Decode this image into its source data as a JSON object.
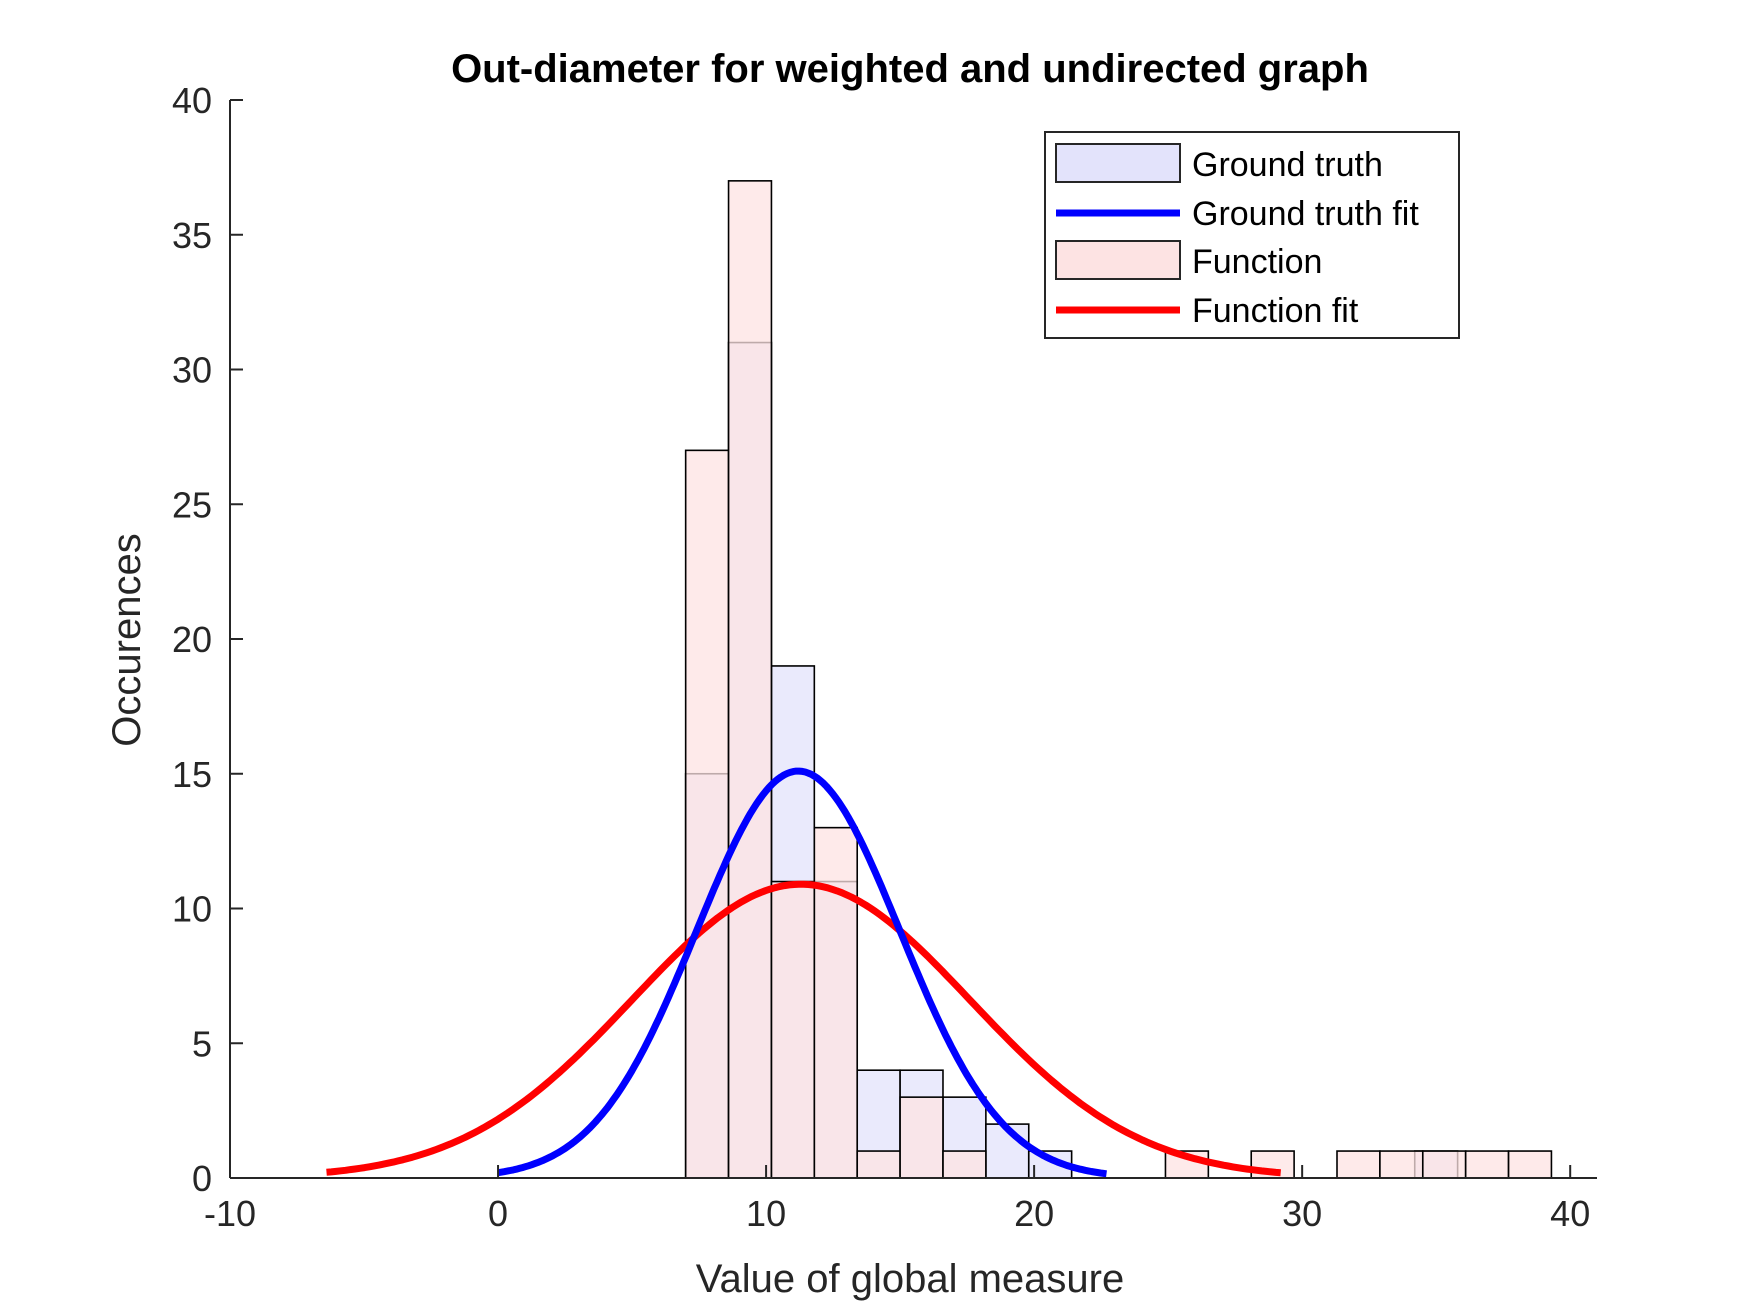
{
  "chart_data": {
    "type": "bar",
    "title": "Out-diameter for weighted and undirected graph",
    "xlabel": "Value of global measure",
    "ylabel": "Occurences",
    "xlim": [
      -10,
      41
    ],
    "ylim": [
      0,
      40
    ],
    "xticks": [
      -10,
      0,
      10,
      20,
      30,
      40
    ],
    "yticks": [
      0,
      5,
      10,
      15,
      20,
      25,
      30,
      35,
      40
    ],
    "grid": false,
    "legend_position": "top-right",
    "series": [
      {
        "name": "Ground truth",
        "kind": "histogram",
        "color": "#e3e3fb",
        "edge_color": "#000000",
        "bins": [
          {
            "x0": 7.0,
            "x1": 8.6,
            "count": 15
          },
          {
            "x0": 8.6,
            "x1": 10.2,
            "count": 31
          },
          {
            "x0": 10.2,
            "x1": 11.8,
            "count": 19
          },
          {
            "x0": 11.8,
            "x1": 13.4,
            "count": 11
          },
          {
            "x0": 13.4,
            "x1": 15.0,
            "count": 4
          },
          {
            "x0": 15.0,
            "x1": 16.6,
            "count": 4
          },
          {
            "x0": 16.6,
            "x1": 18.2,
            "count": 3
          },
          {
            "x0": 18.2,
            "x1": 19.8,
            "count": 2
          },
          {
            "x0": 19.8,
            "x1": 21.4,
            "count": 1
          },
          {
            "x0": 34.2,
            "x1": 35.8,
            "count": 1
          }
        ]
      },
      {
        "name": "Ground truth fit",
        "kind": "normal_fit",
        "color": "#0000ff",
        "mean": 11.2,
        "peak": 15.1,
        "sd": 3.8,
        "x_range": [
          0,
          22.7
        ]
      },
      {
        "name": "Function",
        "kind": "histogram",
        "color": "#fde3e3",
        "edge_color": "#000000",
        "bins": [
          {
            "x0": 7.0,
            "x1": 8.6,
            "count": 27
          },
          {
            "x0": 8.6,
            "x1": 10.2,
            "count": 37
          },
          {
            "x0": 10.2,
            "x1": 11.8,
            "count": 11
          },
          {
            "x0": 11.8,
            "x1": 13.4,
            "count": 13
          },
          {
            "x0": 13.4,
            "x1": 15.0,
            "count": 1
          },
          {
            "x0": 15.0,
            "x1": 16.6,
            "count": 3
          },
          {
            "x0": 16.6,
            "x1": 18.2,
            "count": 1
          },
          {
            "x0": 24.9,
            "x1": 26.5,
            "count": 1
          },
          {
            "x0": 28.1,
            "x1": 29.7,
            "count": 1
          },
          {
            "x0": 31.3,
            "x1": 32.9,
            "count": 1
          },
          {
            "x0": 32.9,
            "x1": 34.5,
            "count": 1
          },
          {
            "x0": 34.5,
            "x1": 36.1,
            "count": 1
          },
          {
            "x0": 36.1,
            "x1": 37.7,
            "count": 1
          },
          {
            "x0": 37.7,
            "x1": 39.3,
            "count": 1
          }
        ]
      },
      {
        "name": "Function fit",
        "kind": "normal_fit",
        "color": "#ff0000",
        "mean": 11.3,
        "peak": 10.9,
        "sd": 6.3,
        "x_range": [
          -6.4,
          29.2
        ]
      }
    ]
  }
}
